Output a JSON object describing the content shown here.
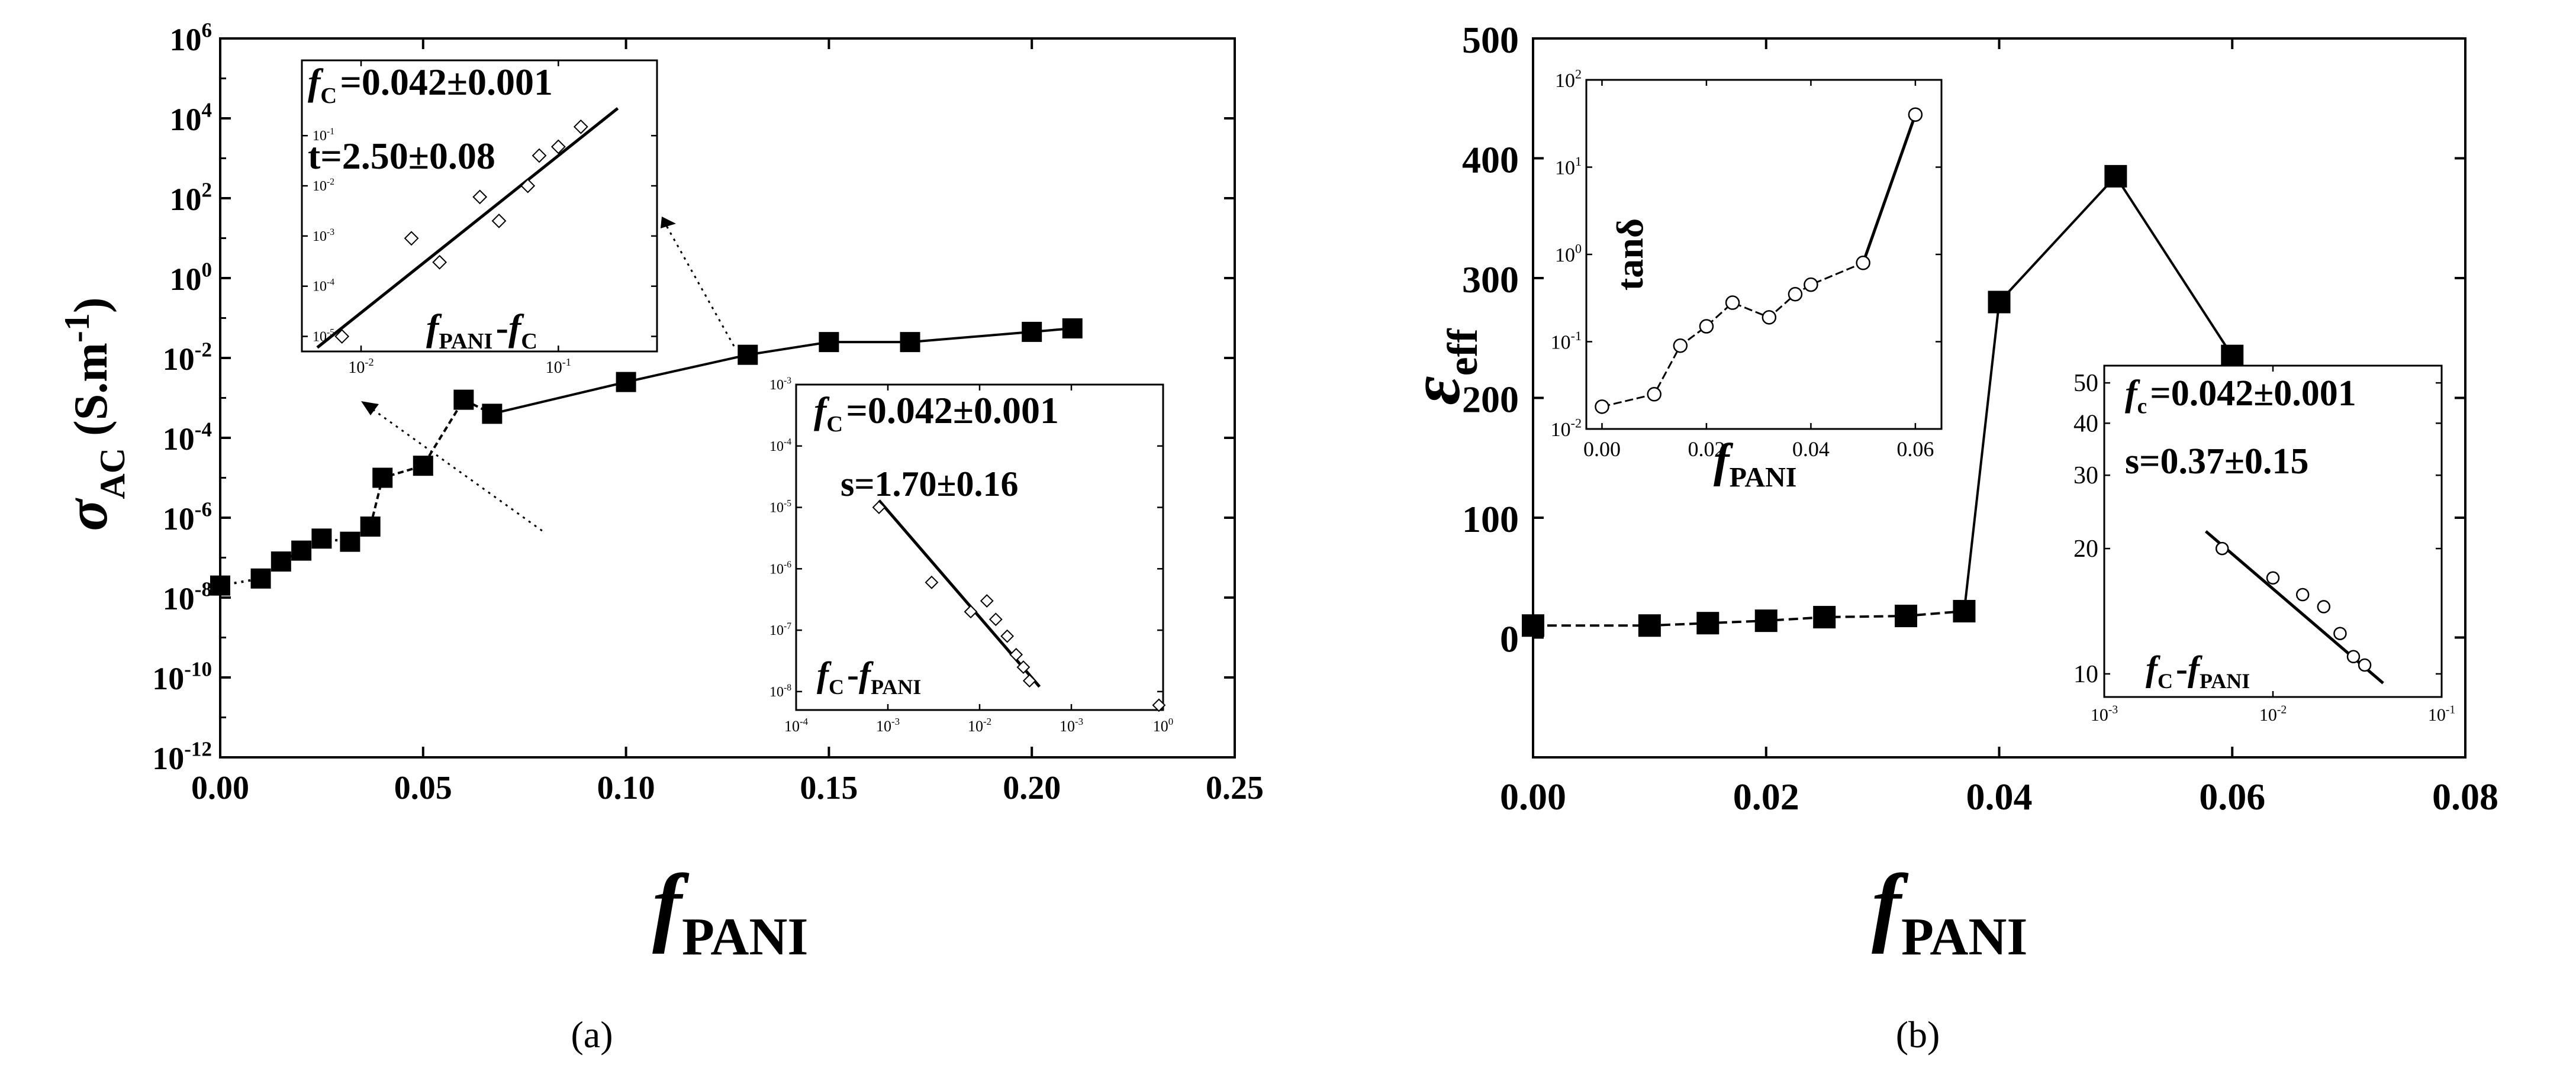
{
  "captions": [
    "(a)",
    "(b)"
  ],
  "chart_data": [
    {
      "id": "a-main",
      "type": "scatter",
      "line": true,
      "marker": "filled-square",
      "x_label": [
        "f",
        "PANI"
      ],
      "y_label": [
        "σ",
        "AC",
        "(S.m",
        "-1",
        ")"
      ],
      "xlim": [
        0,
        0.25
      ],
      "ylim_log10": [
        -12,
        6
      ],
      "y_scale": "log",
      "x_ticks": [
        "0.00",
        "0.05",
        "0.10",
        "0.15",
        "0.20",
        "0.25"
      ],
      "y_ticks": [
        [
          "10",
          "-12"
        ],
        [
          "10",
          "-10"
        ],
        [
          "10",
          "-8"
        ],
        [
          "10",
          "-6"
        ],
        [
          "10",
          "-4"
        ],
        [
          "10",
          "-2"
        ],
        [
          "10",
          "0"
        ],
        [
          "10",
          "2"
        ],
        [
          "10",
          "4"
        ],
        [
          "10",
          "6"
        ]
      ],
      "x": [
        0.0,
        0.01,
        0.015,
        0.02,
        0.025,
        0.032,
        0.037,
        0.04,
        0.05,
        0.06,
        0.067,
        0.1,
        0.13,
        0.15,
        0.17,
        0.2,
        0.21
      ],
      "y": [
        2e-08,
        3e-08,
        8e-08,
        1.5e-07,
        3e-07,
        2.5e-07,
        6e-07,
        1e-05,
        2e-05,
        0.0009,
        0.0004,
        0.0025,
        0.012,
        0.025,
        0.025,
        0.045,
        0.055
      ]
    },
    {
      "id": "a-inset-1",
      "type": "scatter",
      "fit_line": true,
      "marker": "open-diamond",
      "x_scale": "log",
      "y_scale": "log",
      "xlim_log10": [
        -2.3,
        -0.5
      ],
      "ylim_log10": [
        -5.3,
        0.5
      ],
      "x_ticks": [
        [
          "10",
          "-2"
        ],
        [
          "10",
          "-1"
        ]
      ],
      "y_ticks": [
        [
          "10",
          "-5"
        ],
        [
          "10",
          "-4"
        ],
        [
          "10",
          "-3"
        ],
        [
          "10",
          "-2"
        ],
        [
          "10",
          "-1"
        ]
      ],
      "annotations": [
        [
          "f",
          "C",
          "=0.042±0.001"
        ],
        [
          "t=2.50±0.08"
        ]
      ],
      "x_label": [
        "f",
        "PANI",
        "-",
        "f",
        "C"
      ],
      "x": [
        0.008,
        0.018,
        0.025,
        0.04,
        0.05,
        0.07,
        0.08,
        0.1,
        0.13
      ],
      "y": [
        1e-05,
        0.0009,
        0.0003,
        0.006,
        0.002,
        0.01,
        0.04,
        0.06,
        0.15
      ],
      "fit": {
        "x": [
          0.006,
          0.2
        ],
        "y": [
          6e-06,
          0.35
        ]
      }
    },
    {
      "id": "a-inset-2",
      "type": "scatter",
      "fit_line": true,
      "marker": "open-diamond",
      "x_scale": "log",
      "y_scale": "log",
      "xlim_log10": [
        -4,
        0
      ],
      "ylim_log10": [
        -8.3,
        -3
      ],
      "x_ticks": [
        [
          "10",
          "-4"
        ],
        [
          "10",
          "-3"
        ],
        [
          "10",
          "-2"
        ],
        [
          "10",
          "-3"
        ],
        [
          "10",
          "0"
        ]
      ],
      "y_ticks": [
        [
          "10",
          "-3"
        ],
        [
          "10",
          "-4"
        ],
        [
          "10",
          "-5"
        ],
        [
          "10",
          "-6"
        ],
        [
          "10",
          "-7"
        ],
        [
          "10",
          "-8"
        ]
      ],
      "annotations": [
        [
          "f",
          "C",
          "=0.042±0.001"
        ],
        [
          "s=1.70±0.16"
        ]
      ],
      "x_label": [
        "f",
        "C",
        "-",
        "f",
        "PANI"
      ],
      "x": [
        0.0008,
        0.003,
        0.008,
        0.012,
        0.015,
        0.02,
        0.025,
        0.03,
        0.035,
        0.9
      ],
      "y": [
        1e-05,
        6e-07,
        2e-07,
        3e-07,
        1.5e-07,
        8e-08,
        4e-08,
        2.5e-08,
        1.5e-08,
        6e-09
      ],
      "fit": {
        "x": [
          0.0008,
          0.045
        ],
        "y": [
          1.3e-05,
          1.2e-08
        ]
      }
    },
    {
      "id": "b-main",
      "type": "scatter",
      "line": true,
      "marker": "filled-square",
      "x_label": [
        "f",
        "PANI"
      ],
      "y_label": [
        "ε",
        "eff"
      ],
      "xlim": [
        0,
        0.08
      ],
      "ylim": [
        -100,
        500
      ],
      "x_ticks": [
        "0.00",
        "0.02",
        "0.04",
        "0.06",
        "0.08"
      ],
      "y_ticks": [
        "0",
        "100",
        "200",
        "300",
        "400",
        "500"
      ],
      "x": [
        0.0,
        0.01,
        0.015,
        0.02,
        0.025,
        0.032,
        0.037,
        0.04,
        0.05,
        0.06
      ],
      "y": [
        10,
        10,
        12,
        14,
        17,
        18,
        22,
        280,
        385,
        235
      ]
    },
    {
      "id": "b-inset-1",
      "type": "line",
      "marker": "open-circle",
      "y_scale": "log",
      "xlim": [
        -0.003,
        0.065
      ],
      "ylim_log10": [
        -2,
        2
      ],
      "x_ticks": [
        "0.00",
        "0.02",
        "0.04",
        "0.06"
      ],
      "y_ticks": [
        [
          "10",
          "-2"
        ],
        [
          "10",
          "-1"
        ],
        [
          "10",
          "0"
        ],
        [
          "10",
          "1"
        ],
        [
          "10",
          "2"
        ]
      ],
      "annotations": [
        [
          "tanδ"
        ]
      ],
      "x_label": [
        "f",
        "PANI"
      ],
      "x": [
        0.0,
        0.01,
        0.015,
        0.02,
        0.025,
        0.032,
        0.037,
        0.04,
        0.05,
        0.06
      ],
      "y": [
        0.018,
        0.025,
        0.09,
        0.15,
        0.28,
        0.19,
        0.35,
        0.45,
        0.8,
        40
      ]
    },
    {
      "id": "b-inset-2",
      "type": "scatter",
      "fit_line": true,
      "marker": "open-circle",
      "x_scale": "log",
      "y_scale": "log",
      "xlim_log10": [
        -3,
        -1
      ],
      "ylim": [
        8.8,
        55
      ],
      "x_ticks": [
        [
          "10",
          "-3"
        ],
        [
          "10",
          "-2"
        ],
        [
          "10",
          "-1"
        ]
      ],
      "y_ticks": [
        "10",
        "20",
        "30",
        "40",
        "50"
      ],
      "annotations": [
        [
          "f",
          "c",
          "=0.042±0.001"
        ],
        [
          "s=0.37±0.15"
        ]
      ],
      "x_label": [
        "f",
        "C",
        "-",
        "f",
        "PANI"
      ],
      "x": [
        0.005,
        0.01,
        0.015,
        0.02,
        0.025,
        0.03,
        0.035
      ],
      "y": [
        20,
        17,
        15.5,
        14.5,
        12.5,
        11,
        10.5
      ],
      "fit": {
        "x": [
          0.004,
          0.045
        ],
        "y": [
          22,
          9.5
        ]
      }
    }
  ]
}
